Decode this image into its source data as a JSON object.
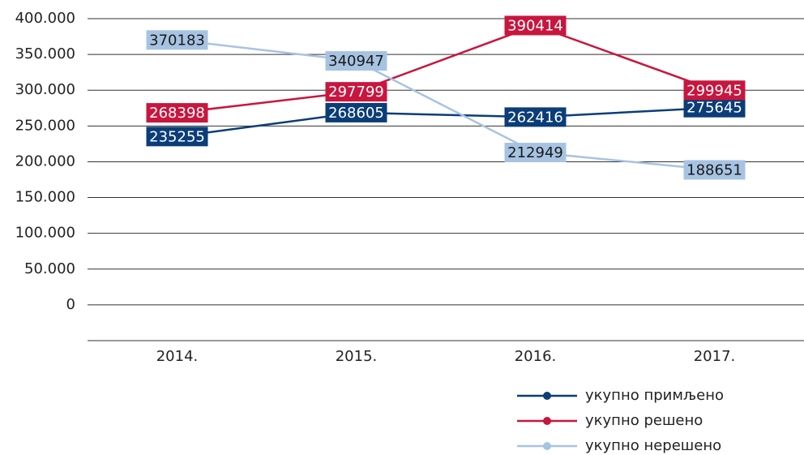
{
  "chart_data": {
    "type": "line",
    "categories": [
      "2014.",
      "2015.",
      "2016.",
      "2017."
    ],
    "series": [
      {
        "name": "укупно примљено",
        "color": "#0b3d78",
        "label_text_color": "#ffffff",
        "values": [
          235255,
          268605,
          262416,
          275645
        ]
      },
      {
        "name": "укупно решено",
        "color": "#c8163f",
        "label_text_color": "#ffffff",
        "values": [
          268398,
          297799,
          390414,
          299945
        ]
      },
      {
        "name": "укупно нерешено",
        "color": "#a7c3e2",
        "label_text_color": "#1a1a1a",
        "values": [
          370183,
          340947,
          212949,
          188651
        ]
      }
    ],
    "ylim": [
      -50000,
      400000
    ],
    "yticks": [
      0,
      {
        "value": 50000,
        "label": "50.000"
      },
      {
        "value": 100000,
        "label": "100.000"
      },
      {
        "value": 150000,
        "label": "150.000"
      },
      {
        "value": 200000,
        "label": "200.000"
      },
      {
        "value": 250000,
        "label": "250.000"
      },
      {
        "value": 300000,
        "label": "300.000"
      },
      {
        "value": 350000,
        "label": "350.000"
      },
      {
        "value": 400000,
        "label": "400.000"
      }
    ],
    "grid": true,
    "data_labels": true,
    "legend": "bottom-right"
  }
}
